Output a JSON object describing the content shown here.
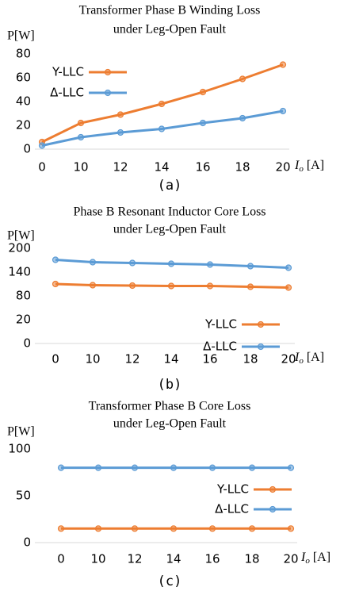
{
  "chart_data": [
    {
      "type": "line",
      "title": [
        "Transformer Phase B Winding Loss",
        "under Leg-Open Fault"
      ],
      "ylabel": "P[W]",
      "xlabel": [
        "I",
        "o",
        "[A]"
      ],
      "caption": "(a)",
      "categories": [
        "0",
        "10",
        "12",
        "14",
        "16",
        "18",
        "20"
      ],
      "series": [
        {
          "name": "Y-LLC",
          "color": "#ed7d31",
          "values": [
            6,
            22,
            29,
            38,
            48,
            59,
            71
          ]
        },
        {
          "name": "Δ-LLC",
          "color": "#5b9bd5",
          "values": [
            3,
            10,
            14,
            17,
            22,
            26,
            32
          ]
        }
      ],
      "ylim": [
        0,
        80
      ],
      "yticks": [
        0,
        20,
        40,
        60,
        80
      ],
      "legend": "upper left"
    },
    {
      "type": "line",
      "title": [
        "Phase B Resonant Inductor Core Loss",
        "under Leg-Open Fault"
      ],
      "ylabel": "P[W]",
      "xlabel": [
        "I",
        "o",
        "[A]"
      ],
      "caption": "(b)",
      "categories": [
        "0",
        "10",
        "12",
        "14",
        "16",
        "18",
        "20"
      ],
      "series": [
        {
          "name": "Y-LLC",
          "color": "#ed7d31",
          "values": [
            110,
            107,
            106,
            105,
            105,
            103,
            101
          ]
        },
        {
          "name": "Δ-LLC",
          "color": "#5b9bd5",
          "values": [
            171,
            165,
            163,
            161,
            159,
            155,
            151
          ]
        }
      ],
      "ylim": [
        0,
        200
      ],
      "yticks": [
        0,
        20,
        80,
        140,
        200
      ],
      "legend": "lower right"
    },
    {
      "type": "line",
      "title": [
        "Transformer Phase B Core Loss",
        "under Leg-Open Fault"
      ],
      "ylabel": "P[W]",
      "xlabel": [
        "I",
        "o",
        "[A]"
      ],
      "caption": "(c)",
      "categories": [
        "0",
        "10",
        "12",
        "14",
        "16",
        "18",
        "20"
      ],
      "series": [
        {
          "name": "Y-LLC",
          "color": "#ed7d31",
          "values": [
            15,
            15,
            15,
            15,
            15,
            15,
            15
          ]
        },
        {
          "name": "Δ-LLC",
          "color": "#5b9bd5",
          "values": [
            80,
            80,
            80,
            80,
            80,
            80,
            80
          ]
        }
      ],
      "ylim": [
        0,
        100
      ],
      "yticks": [
        0,
        50,
        100
      ],
      "legend": "center right"
    }
  ]
}
